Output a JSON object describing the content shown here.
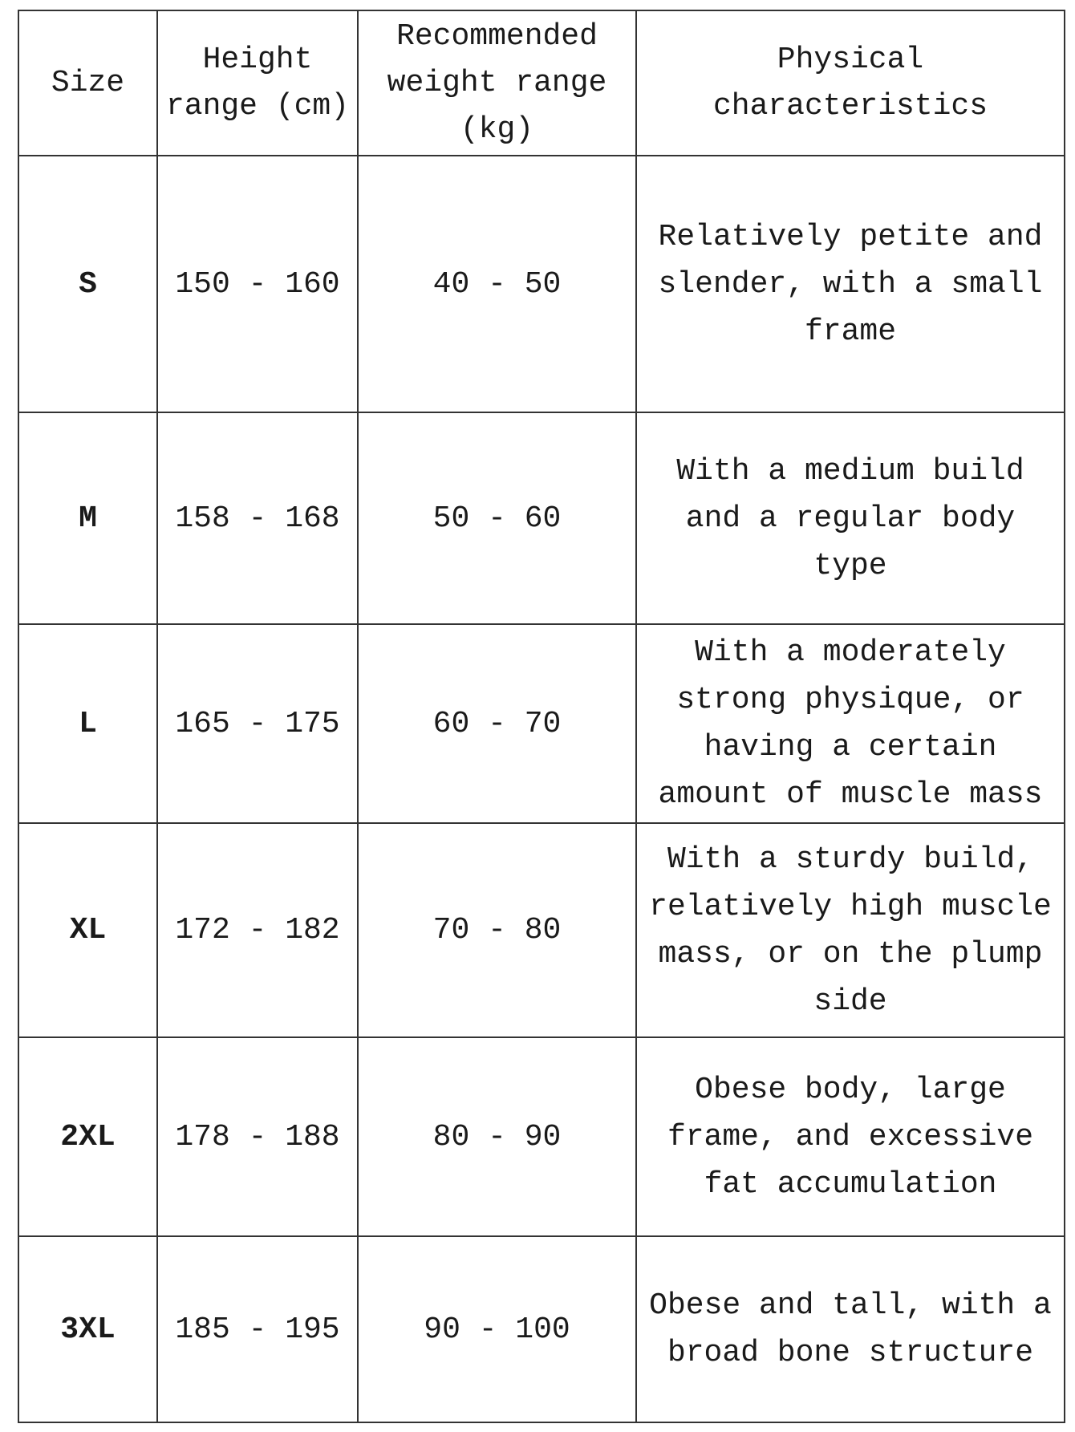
{
  "headers": [
    "Size",
    "Height range (cm)",
    "Recommended weight range (kg)",
    "Physical characteristics"
  ],
  "rows": [
    {
      "size": "S",
      "height": "150 - 160",
      "weight": "40 - 50",
      "desc": "Relatively petite and slender, with a small frame"
    },
    {
      "size": "M",
      "height": "158 - 168",
      "weight": "50 - 60",
      "desc": "With a medium build and a regular body type"
    },
    {
      "size": "L",
      "height": "165 - 175",
      "weight": "60 - 70",
      "desc": "With a moderately strong physique, or having a certain amount of muscle mass"
    },
    {
      "size": "XL",
      "height": "172 - 182",
      "weight": "70 - 80",
      "desc": "With a sturdy build, relatively high muscle mass, or on the plump side"
    },
    {
      "size": "2XL",
      "height": "178 - 188",
      "weight": "80 - 90",
      "desc": "Obese body, large frame, and excessive fat accumulation"
    },
    {
      "size": "3XL",
      "height": "185 - 195",
      "weight": "90 - 100",
      "desc": "Obese and tall, with a broad bone structure"
    }
  ]
}
